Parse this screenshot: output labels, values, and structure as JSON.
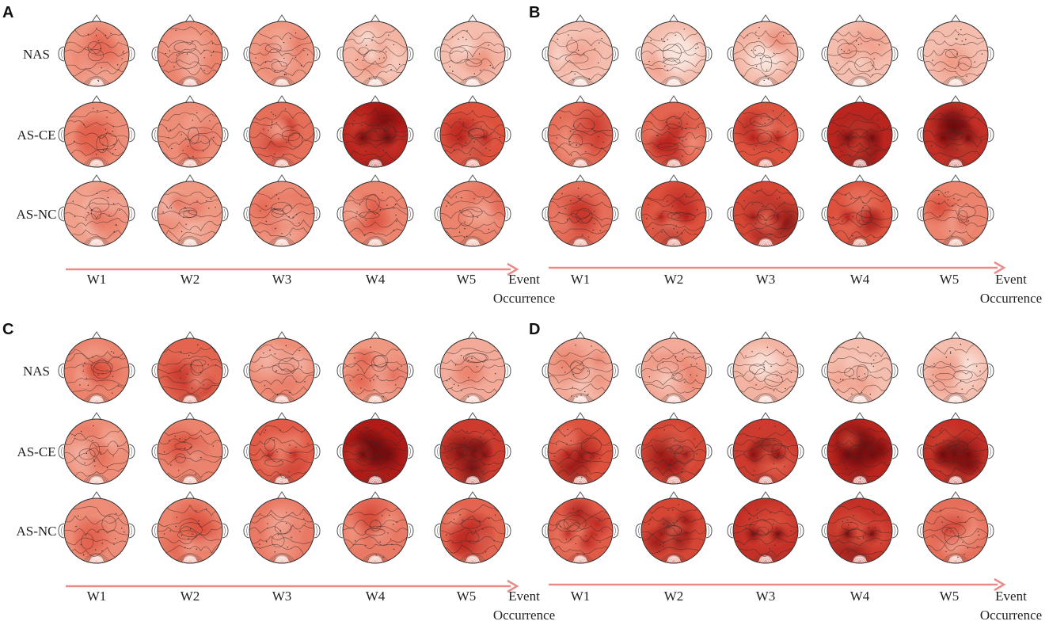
{
  "figure": {
    "description_type": "EEG scalp topography grid",
    "arrow_color": "#ec8a8a",
    "panels": [
      {
        "letter": "A",
        "rows": [
          "NAS",
          "AS-CE",
          "AS-NC"
        ],
        "windows": [
          "W1",
          "W2",
          "W3",
          "W4",
          "W5"
        ],
        "event_label": [
          "Event",
          "Occurrence"
        ],
        "intensity": [
          [
            0.35,
            0.45,
            0.35,
            0.2,
            0.15
          ],
          [
            0.4,
            0.4,
            0.55,
            0.95,
            0.7
          ],
          [
            0.3,
            0.35,
            0.4,
            0.45,
            0.45
          ]
        ]
      },
      {
        "letter": "B",
        "rows": [
          "NAS",
          "AS-CE",
          "AS-NC"
        ],
        "windows": [
          "W1",
          "W2",
          "W3",
          "W4",
          "W5"
        ],
        "event_label": [
          "Event",
          "Occurrence"
        ],
        "intensity": [
          [
            0.15,
            0.15,
            0.2,
            0.15,
            0.15
          ],
          [
            0.55,
            0.6,
            0.7,
            0.9,
            0.85
          ],
          [
            0.55,
            0.7,
            0.75,
            0.7,
            0.45
          ]
        ]
      },
      {
        "letter": "C",
        "rows": [
          "NAS",
          "AS-CE",
          "AS-NC"
        ],
        "windows": [
          "W1",
          "W2",
          "W3",
          "W4",
          "W5"
        ],
        "event_label": [
          "Event",
          "Occurrence"
        ],
        "intensity": [
          [
            0.45,
            0.6,
            0.4,
            0.35,
            0.25
          ],
          [
            0.4,
            0.45,
            0.65,
            0.95,
            0.8
          ],
          [
            0.4,
            0.45,
            0.5,
            0.5,
            0.6
          ]
        ]
      },
      {
        "letter": "D",
        "rows": [
          "NAS",
          "AS-CE",
          "AS-NC"
        ],
        "windows": [
          "W1",
          "W2",
          "W3",
          "W4",
          "W5"
        ],
        "event_label": [
          "Event",
          "Occurrence"
        ],
        "intensity": [
          [
            0.25,
            0.25,
            0.2,
            0.15,
            0.15
          ],
          [
            0.7,
            0.75,
            0.8,
            0.9,
            0.85
          ],
          [
            0.65,
            0.75,
            0.85,
            0.85,
            0.55
          ]
        ]
      }
    ]
  }
}
